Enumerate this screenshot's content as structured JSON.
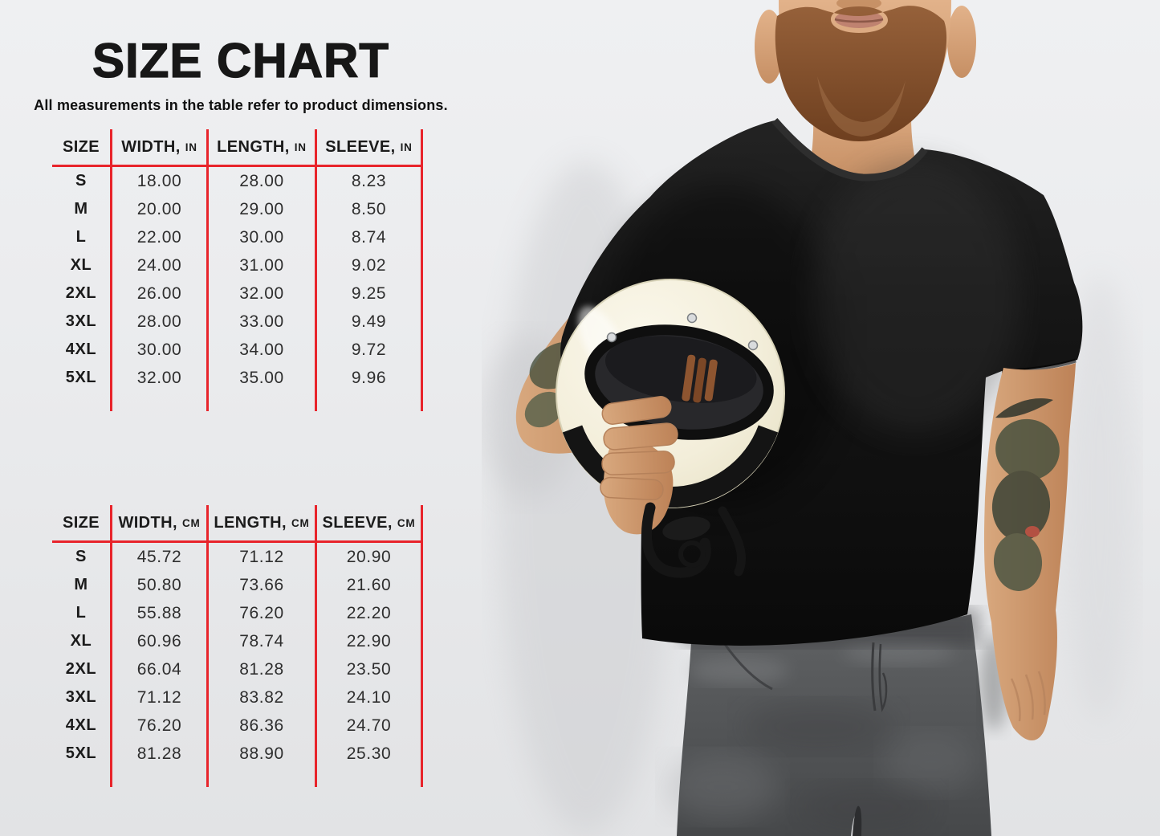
{
  "page": {
    "title": "SIZE CHART",
    "subtitle": "All measurements in the table refer to product dimensions."
  },
  "colors": {
    "accent_red": "#e8242b",
    "title_text": "#171717",
    "body_text": "#2e2e2e",
    "background_top": "#eff0f2",
    "background_bottom": "#e2e3e5",
    "shirt_black": "#141414",
    "helmet_cream": "#f5f1dd",
    "jeans_grey": "#545557",
    "skin_tone": "#d8a87e"
  },
  "tables": [
    {
      "name": "inches",
      "columns": [
        {
          "label": "SIZE",
          "unit": ""
        },
        {
          "label": "WIDTH,",
          "unit": "IN"
        },
        {
          "label": "LENGTH,",
          "unit": "IN"
        },
        {
          "label": "SLEEVE,",
          "unit": "IN"
        }
      ],
      "rows": [
        {
          "size": "S",
          "width": "18.00",
          "length": "28.00",
          "sleeve": "8.23"
        },
        {
          "size": "M",
          "width": "20.00",
          "length": "29.00",
          "sleeve": "8.50"
        },
        {
          "size": "L",
          "width": "22.00",
          "length": "30.00",
          "sleeve": "8.74"
        },
        {
          "size": "XL",
          "width": "24.00",
          "length": "31.00",
          "sleeve": "9.02"
        },
        {
          "size": "2XL",
          "width": "26.00",
          "length": "32.00",
          "sleeve": "9.25"
        },
        {
          "size": "3XL",
          "width": "28.00",
          "length": "33.00",
          "sleeve": "9.49"
        },
        {
          "size": "4XL",
          "width": "30.00",
          "length": "34.00",
          "sleeve": "9.72"
        },
        {
          "size": "5XL",
          "width": "32.00",
          "length": "35.00",
          "sleeve": "9.96"
        }
      ]
    },
    {
      "name": "centimeters",
      "columns": [
        {
          "label": "SIZE",
          "unit": ""
        },
        {
          "label": "WIDTH,",
          "unit": "CM"
        },
        {
          "label": "LENGTH,",
          "unit": "CM"
        },
        {
          "label": "SLEEVE,",
          "unit": "CM"
        }
      ],
      "rows": [
        {
          "size": "S",
          "width": "45.72",
          "length": "71.12",
          "sleeve": "20.90"
        },
        {
          "size": "M",
          "width": "50.80",
          "length": "73.66",
          "sleeve": "21.60"
        },
        {
          "size": "L",
          "width": "55.88",
          "length": "76.20",
          "sleeve": "22.20"
        },
        {
          "size": "XL",
          "width": "60.96",
          "length": "78.74",
          "sleeve": "22.90"
        },
        {
          "size": "2XL",
          "width": "66.04",
          "length": "81.28",
          "sleeve": "23.50"
        },
        {
          "size": "3XL",
          "width": "71.12",
          "length": "83.82",
          "sleeve": "24.10"
        },
        {
          "size": "4XL",
          "width": "76.20",
          "length": "86.36",
          "sleeve": "24.70"
        },
        {
          "size": "5XL",
          "width": "81.28",
          "length": "88.90",
          "sleeve": "25.30"
        }
      ]
    }
  ]
}
